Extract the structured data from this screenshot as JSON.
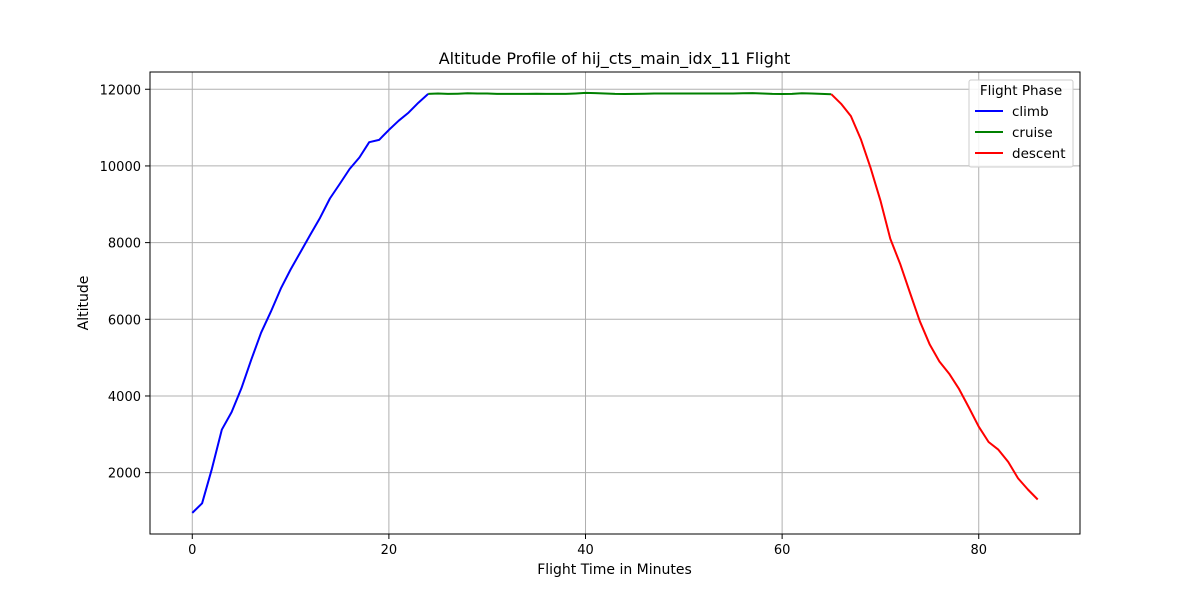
{
  "chart_data": {
    "type": "line",
    "title": "Altitude Profile of hij_cts_main_idx_11 Flight",
    "xlabel": "Flight Time in Minutes",
    "ylabel": "Altitude",
    "xlim": [
      -4.3,
      90.3
    ],
    "ylim": [
      400,
      12450
    ],
    "xticks": [
      0,
      20,
      40,
      60,
      80
    ],
    "yticks": [
      2000,
      4000,
      6000,
      8000,
      10000,
      12000
    ],
    "grid": true,
    "legend": {
      "title": "Flight Phase",
      "position": "top-right"
    },
    "series": [
      {
        "name": "climb",
        "color": "#0000ff",
        "x": [
          0,
          1,
          2,
          3,
          4,
          5,
          6,
          7,
          8,
          9,
          10,
          11,
          12,
          13,
          14,
          15,
          16,
          17,
          18,
          19,
          20,
          21,
          22,
          23,
          24
        ],
        "y": [
          950,
          1200,
          2100,
          3120,
          3580,
          4200,
          4950,
          5650,
          6200,
          6800,
          7300,
          7750,
          8200,
          8650,
          9150,
          9530,
          9920,
          10220,
          10620,
          10680,
          10940,
          11180,
          11390,
          11650,
          11880
        ]
      },
      {
        "name": "cruise",
        "color": "#008000",
        "x": [
          24,
          25,
          26,
          27,
          28,
          29,
          30,
          31,
          32,
          33,
          34,
          35,
          36,
          37,
          38,
          39,
          40,
          41,
          42,
          43,
          44,
          45,
          46,
          47,
          48,
          49,
          50,
          51,
          52,
          53,
          54,
          55,
          56,
          57,
          58,
          59,
          60,
          61,
          62,
          63,
          64,
          65
        ],
        "y": [
          11880,
          11890,
          11880,
          11885,
          11895,
          11890,
          11890,
          11880,
          11880,
          11880,
          11880,
          11885,
          11880,
          11880,
          11880,
          11890,
          11905,
          11900,
          11890,
          11880,
          11875,
          11880,
          11885,
          11890,
          11890,
          11890,
          11890,
          11890,
          11890,
          11890,
          11890,
          11890,
          11895,
          11900,
          11890,
          11880,
          11875,
          11880,
          11895,
          11890,
          11880,
          11870
        ]
      },
      {
        "name": "descent",
        "color": "#ff0000",
        "x": [
          65,
          66,
          67,
          68,
          69,
          70,
          71,
          72,
          73,
          74,
          75,
          76,
          77,
          78,
          79,
          80,
          81,
          82,
          83,
          84,
          85,
          86
        ],
        "y": [
          11870,
          11620,
          11300,
          10700,
          9950,
          9100,
          8100,
          7450,
          6700,
          5950,
          5350,
          4900,
          4580,
          4180,
          3700,
          3200,
          2800,
          2600,
          2280,
          1850,
          1560,
          1300
        ]
      }
    ]
  }
}
